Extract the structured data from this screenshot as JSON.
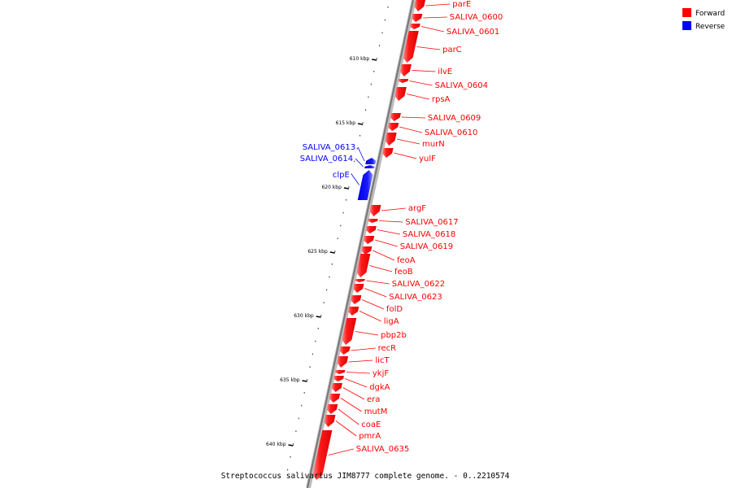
{
  "legend": {
    "forward_label": "Forward",
    "forward_color": "#ff0000",
    "reverse_label": "Reverse",
    "reverse_color": "#0000ff"
  },
  "caption": "Streptococcus salivarius JIM8777 complete genome. - 0..2210574",
  "ticks": [
    {
      "label": "610 kbp",
      "kbp": 610
    },
    {
      "label": "615 kbp",
      "kbp": 615
    },
    {
      "label": "620 kbp",
      "kbp": 620
    },
    {
      "label": "625 kbp",
      "kbp": 625
    },
    {
      "label": "630 kbp",
      "kbp": 630
    },
    {
      "label": "635 kbp",
      "kbp": 635
    },
    {
      "label": "640 kbp",
      "kbp": 640
    }
  ],
  "genes": [
    {
      "name": "parE",
      "strand": "forward"
    },
    {
      "name": "SALIVA_0600",
      "strand": "forward"
    },
    {
      "name": "SALIVA_0601",
      "strand": "forward"
    },
    {
      "name": "parC",
      "strand": "forward"
    },
    {
      "name": "ilvE",
      "strand": "forward"
    },
    {
      "name": "SALIVA_0604",
      "strand": "forward"
    },
    {
      "name": "rpsA",
      "strand": "forward"
    },
    {
      "name": "SALIVA_0609",
      "strand": "forward"
    },
    {
      "name": "SALIVA_0610",
      "strand": "forward"
    },
    {
      "name": "murN",
      "strand": "forward"
    },
    {
      "name": "yulF",
      "strand": "forward"
    },
    {
      "name": "SALIVA_0613",
      "strand": "reverse"
    },
    {
      "name": "SALIVA_0614",
      "strand": "reverse"
    },
    {
      "name": "clpE",
      "strand": "reverse"
    },
    {
      "name": "argF",
      "strand": "forward"
    },
    {
      "name": "SALIVA_0617",
      "strand": "forward"
    },
    {
      "name": "SALIVA_0618",
      "strand": "forward"
    },
    {
      "name": "SALIVA_0619",
      "strand": "forward"
    },
    {
      "name": "feoA",
      "strand": "forward"
    },
    {
      "name": "feoB",
      "strand": "forward"
    },
    {
      "name": "SALIVA_0622",
      "strand": "forward"
    },
    {
      "name": "SALIVA_0623",
      "strand": "forward"
    },
    {
      "name": "folD",
      "strand": "forward"
    },
    {
      "name": "ligA",
      "strand": "forward"
    },
    {
      "name": "pbp2b",
      "strand": "forward"
    },
    {
      "name": "recR",
      "strand": "forward"
    },
    {
      "name": "licT",
      "strand": "forward"
    },
    {
      "name": "ykjF",
      "strand": "forward"
    },
    {
      "name": "dgkA",
      "strand": "forward"
    },
    {
      "name": "era",
      "strand": "forward"
    },
    {
      "name": "mutM",
      "strand": "forward"
    },
    {
      "name": "coaE",
      "strand": "forward"
    },
    {
      "name": "pmrA",
      "strand": "forward"
    },
    {
      "name": "SALIVA_0635",
      "strand": "forward"
    }
  ]
}
